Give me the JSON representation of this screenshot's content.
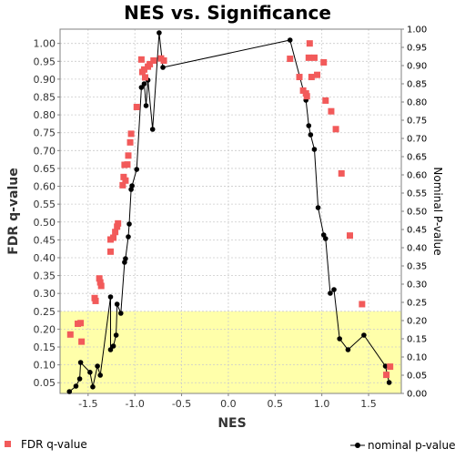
{
  "chart_data": {
    "type": "scatter",
    "title": "NES vs. Significance",
    "xlabel": "NES",
    "ylabel_left": "FDR q-value",
    "ylabel_right": "Nominal P-value",
    "xlim": [
      -1.8,
      1.85
    ],
    "ylim_left": [
      0.02,
      1.04
    ],
    "ylim_right": [
      0.0,
      1.0
    ],
    "x_ticks": [
      -1.5,
      -1.0,
      -0.5,
      0.0,
      0.5,
      1.0,
      1.5
    ],
    "x_tick_labels": [
      "-1.5",
      "-1.0",
      "-0.5",
      "0.0",
      "0.5",
      "1.0",
      "1.5"
    ],
    "y_left_ticks": [
      0.05,
      0.1,
      0.15,
      0.2,
      0.25,
      0.3,
      0.35,
      0.4,
      0.45,
      0.5,
      0.55,
      0.6,
      0.65,
      0.7,
      0.75,
      0.8,
      0.85,
      0.9,
      0.95,
      1.0
    ],
    "y_left_tick_labels": [
      "0.05",
      "0.10",
      "0.15",
      "0.20",
      "0.25",
      "0.30",
      "0.35",
      "0.40",
      "0.45",
      "0.50",
      "0.55",
      "0.60",
      "0.65",
      "0.70",
      "0.75",
      "0.80",
      "0.85",
      "0.90",
      "0.95",
      "1.00"
    ],
    "y_right_ticks": [
      0.0,
      0.05,
      0.1,
      0.15,
      0.2,
      0.25,
      0.3,
      0.35,
      0.4,
      0.45,
      0.5,
      0.55,
      0.6,
      0.65,
      0.7,
      0.75,
      0.8,
      0.85,
      0.9,
      0.95,
      1.0
    ],
    "y_right_tick_labels": [
      "0.00",
      "0.05",
      "0.10",
      "0.15",
      "0.20",
      "0.25",
      "0.30",
      "0.35",
      "0.40",
      "0.45",
      "0.50",
      "0.55",
      "0.60",
      "0.65",
      "0.70",
      "0.75",
      "0.80",
      "0.85",
      "0.90",
      "0.95",
      "1.00"
    ],
    "highlight_band_left": [
      0.02,
      0.25
    ],
    "highlight_color": "#ffffaa",
    "grid": true,
    "legend_position": "bottom",
    "series": [
      {
        "name": "FDR q-value",
        "type": "scatter",
        "marker": "square",
        "color": "#f25a5a",
        "axis": "left",
        "points": [
          [
            -1.69,
            0.185
          ],
          [
            -1.61,
            0.215
          ],
          [
            -1.58,
            0.217
          ],
          [
            -1.57,
            0.165
          ],
          [
            -1.43,
            0.287
          ],
          [
            -1.42,
            0.279
          ],
          [
            -1.38,
            0.342
          ],
          [
            -1.37,
            0.331
          ],
          [
            -1.36,
            0.321
          ],
          [
            -1.26,
            0.417
          ],
          [
            -1.26,
            0.451
          ],
          [
            -1.23,
            0.456
          ],
          [
            -1.21,
            0.472
          ],
          [
            -1.19,
            0.487
          ],
          [
            -1.18,
            0.496
          ],
          [
            -1.13,
            0.603
          ],
          [
            -1.12,
            0.626
          ],
          [
            -1.11,
            0.66
          ],
          [
            -1.1,
            0.616
          ],
          [
            -1.08,
            0.661
          ],
          [
            -1.07,
            0.686
          ],
          [
            -1.05,
            0.723
          ],
          [
            -1.04,
            0.747
          ],
          [
            -0.98,
            0.822
          ],
          [
            -0.93,
            0.955
          ],
          [
            -0.92,
            0.92
          ],
          [
            -0.9,
            0.927
          ],
          [
            -0.89,
            0.905
          ],
          [
            -0.86,
            0.935
          ],
          [
            -0.84,
            0.942
          ],
          [
            -0.8,
            0.952
          ],
          [
            -0.72,
            0.958
          ],
          [
            -0.69,
            0.952
          ],
          [
            0.66,
            0.957
          ],
          [
            0.76,
            0.906
          ],
          [
            0.8,
            0.868
          ],
          [
            0.83,
            0.86
          ],
          [
            0.84,
            0.852
          ],
          [
            0.86,
            0.96
          ],
          [
            0.87,
            1.0
          ],
          [
            0.89,
            0.906
          ],
          [
            0.92,
            0.96
          ],
          [
            0.95,
            0.912
          ],
          [
            1.02,
            0.947
          ],
          [
            1.04,
            0.84
          ],
          [
            1.1,
            0.81
          ],
          [
            1.15,
            0.76
          ],
          [
            1.21,
            0.636
          ],
          [
            1.3,
            0.462
          ],
          [
            1.43,
            0.27
          ],
          [
            1.69,
            0.072
          ],
          [
            1.73,
            0.095
          ]
        ]
      },
      {
        "name": "nominal p-value",
        "type": "line",
        "marker": "circle",
        "color": "#000000",
        "axis": "right",
        "points": [
          [
            -1.7,
            0.005
          ],
          [
            -1.63,
            0.02
          ],
          [
            -1.59,
            0.04
          ],
          [
            -1.58,
            0.085
          ],
          [
            -1.48,
            0.058
          ],
          [
            -1.45,
            0.018
          ],
          [
            -1.4,
            0.075
          ],
          [
            -1.37,
            0.05
          ],
          [
            -1.26,
            0.265
          ],
          [
            -1.26,
            0.12
          ],
          [
            -1.23,
            0.13
          ],
          [
            -1.2,
            0.16
          ],
          [
            -1.19,
            0.245
          ],
          [
            -1.15,
            0.22
          ],
          [
            -1.11,
            0.36
          ],
          [
            -1.1,
            0.37
          ],
          [
            -1.07,
            0.43
          ],
          [
            -1.06,
            0.465
          ],
          [
            -1.04,
            0.56
          ],
          [
            -1.03,
            0.57
          ],
          [
            -0.98,
            0.615
          ],
          [
            -0.93,
            0.84
          ],
          [
            -0.9,
            0.85
          ],
          [
            -0.88,
            0.79
          ],
          [
            -0.86,
            0.86
          ],
          [
            -0.81,
            0.725
          ],
          [
            -0.74,
            0.99
          ],
          [
            -0.7,
            0.895
          ],
          [
            0.66,
            0.97
          ],
          [
            0.83,
            0.805
          ],
          [
            0.86,
            0.735
          ],
          [
            0.88,
            0.71
          ],
          [
            0.92,
            0.67
          ],
          [
            0.96,
            0.51
          ],
          [
            1.02,
            0.435
          ],
          [
            1.04,
            0.425
          ],
          [
            1.09,
            0.275
          ],
          [
            1.13,
            0.285
          ],
          [
            1.19,
            0.15
          ],
          [
            1.28,
            0.12
          ],
          [
            1.45,
            0.16
          ],
          [
            1.68,
            0.075
          ],
          [
            1.72,
            0.03
          ]
        ]
      }
    ]
  }
}
